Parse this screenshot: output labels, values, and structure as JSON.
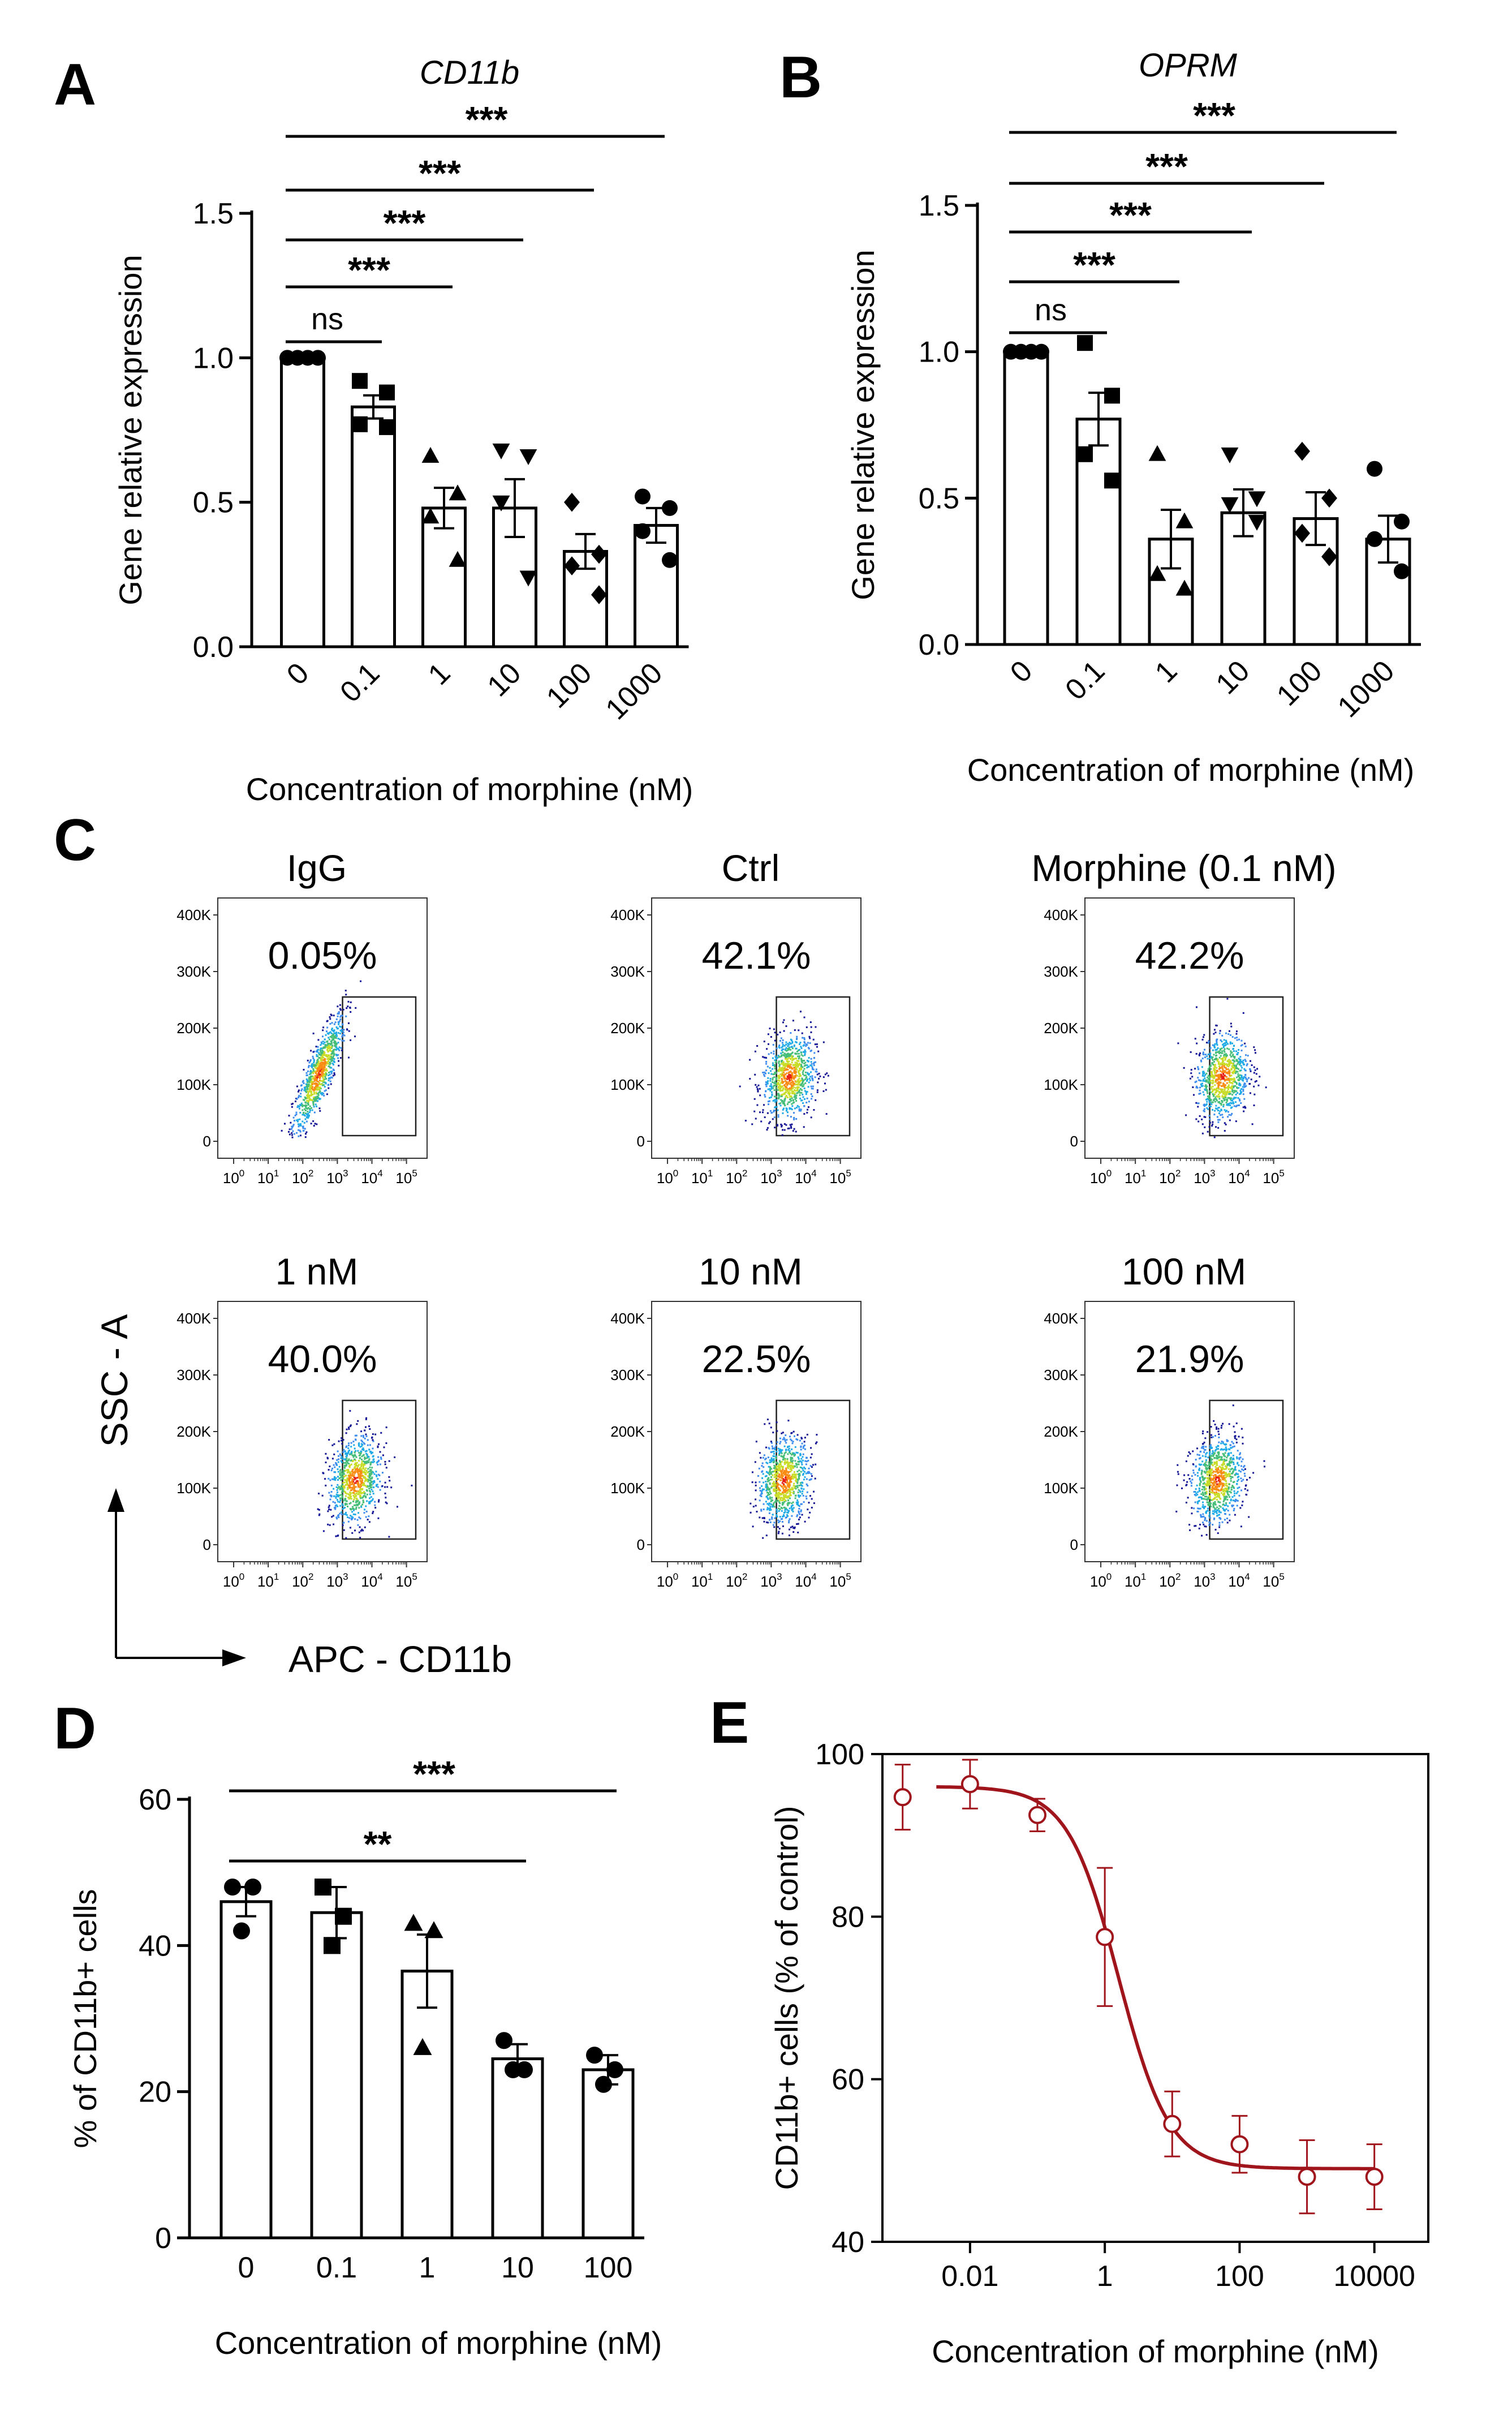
{
  "panel_labels": [
    "A",
    "B",
    "C",
    "D",
    "E"
  ],
  "chart_data": [
    {
      "panel": "A",
      "type": "bar",
      "title": "CD11b",
      "ylabel": "Gene relative expression",
      "xlabel": "Concentration of morphine (nM)",
      "categories": [
        "0",
        "0.1",
        "1",
        "10",
        "100",
        "1000"
      ],
      "values": [
        1.0,
        0.83,
        0.48,
        0.48,
        0.33,
        0.42
      ],
      "errors": [
        0.0,
        0.04,
        0.07,
        0.1,
        0.06,
        0.06
      ],
      "points": [
        [
          1.0,
          1.0,
          1.0,
          1.0
        ],
        [
          0.92,
          0.88,
          0.77,
          0.76
        ],
        [
          0.66,
          0.53,
          0.45,
          0.3
        ],
        [
          0.68,
          0.66,
          0.5,
          0.24
        ],
        [
          0.5,
          0.32,
          0.28,
          0.18
        ],
        [
          0.52,
          0.48,
          0.4,
          0.3
        ]
      ],
      "markers": [
        "circle",
        "square",
        "triangle",
        "triangle-down",
        "diamond",
        "circle"
      ],
      "ylim": [
        0,
        1.5
      ],
      "yticks": [
        "0.0",
        "0.5",
        "1.0",
        "1.5"
      ],
      "comparisons": [
        {
          "from": 0,
          "to": 1,
          "label": "ns"
        },
        {
          "from": 0,
          "to": 2,
          "label": "***"
        },
        {
          "from": 0,
          "to": 3,
          "label": "***"
        },
        {
          "from": 0,
          "to": 4,
          "label": "***"
        },
        {
          "from": 0,
          "to": 5,
          "label": "***"
        }
      ]
    },
    {
      "panel": "B",
      "type": "bar",
      "title": "OPRM",
      "ylabel": "Gene relative expression",
      "xlabel": "Concentration of morphine (nM)",
      "categories": [
        "0",
        "0.1",
        "1",
        "10",
        "100",
        "1000"
      ],
      "values": [
        1.0,
        0.77,
        0.36,
        0.45,
        0.43,
        0.36
      ],
      "errors": [
        0.0,
        0.09,
        0.1,
        0.08,
        0.09,
        0.08
      ],
      "points": [
        [
          1.0,
          1.0,
          1.0,
          1.0
        ],
        [
          1.03,
          0.85,
          0.65,
          0.56
        ],
        [
          0.65,
          0.42,
          0.24,
          0.19
        ],
        [
          0.65,
          0.5,
          0.48,
          0.42
        ],
        [
          0.66,
          0.5,
          0.38,
          0.3
        ],
        [
          0.6,
          0.42,
          0.36,
          0.25
        ]
      ],
      "markers": [
        "circle",
        "square",
        "triangle",
        "triangle-down",
        "diamond",
        "circle"
      ],
      "ylim": [
        0,
        1.5
      ],
      "yticks": [
        "0.0",
        "0.5",
        "1.0",
        "1.5"
      ],
      "comparisons": [
        {
          "from": 0,
          "to": 1,
          "label": "ns"
        },
        {
          "from": 0,
          "to": 2,
          "label": "***"
        },
        {
          "from": 0,
          "to": 3,
          "label": "***"
        },
        {
          "from": 0,
          "to": 4,
          "label": "***"
        },
        {
          "from": 0,
          "to": 5,
          "label": "***"
        }
      ]
    },
    {
      "panel": "C",
      "type": "scatter",
      "subtype": "flow-cytometry-density",
      "ylabel": "SSC - A",
      "xlabel": "APC - CD11b",
      "y_ticks": [
        "400K",
        "300K",
        "200K",
        "100K",
        "0"
      ],
      "x_tick_exponents": [
        "0",
        "1",
        "2",
        "3",
        "4",
        "5"
      ],
      "x_tick_base": "10",
      "plots": [
        {
          "title": "IgG",
          "gated_percent": "0.05%",
          "gate_x_start_log": 3.15
        },
        {
          "title": "Ctrl",
          "gated_percent": "42.1%",
          "gate_x_start_log": 3.15
        },
        {
          "title": "Morphine (0.1 nM)",
          "gated_percent": "42.2%",
          "gate_x_start_log": 3.15
        },
        {
          "title": "1 nM",
          "gated_percent": "40.0%",
          "gate_x_start_log": 3.15
        },
        {
          "title": "10 nM",
          "gated_percent": "22.5%",
          "gate_x_start_log": 3.15
        },
        {
          "title": "100 nM",
          "gated_percent": "21.9%",
          "gate_x_start_log": 3.15
        }
      ]
    },
    {
      "panel": "D",
      "type": "bar",
      "ylabel": "% of CD11b+ cells",
      "xlabel": "Concentration of morphine (nM)",
      "categories": [
        "0",
        "0.1",
        "1",
        "10",
        "100"
      ],
      "values": [
        46,
        44.5,
        36.5,
        24.5,
        23
      ],
      "errors": [
        2,
        3.5,
        5,
        2,
        2
      ],
      "points": [
        [
          48,
          48,
          42
        ],
        [
          48,
          44,
          40
        ],
        [
          43,
          42,
          26
        ],
        [
          27,
          23,
          23
        ],
        [
          25,
          23,
          21
        ]
      ],
      "markers": [
        "circle",
        "square",
        "triangle",
        "circle",
        "circle"
      ],
      "ylim": [
        0,
        60
      ],
      "yticks": [
        "0",
        "20",
        "40",
        "60"
      ],
      "comparisons": [
        {
          "from": 0,
          "to": 3,
          "label": "**"
        },
        {
          "from": 0,
          "to": 4,
          "label": "***"
        }
      ]
    },
    {
      "panel": "E",
      "type": "scatter",
      "subtype": "dose-response",
      "ylabel": "CD11b+ cells (% of control)",
      "xlabel": "Concentration of morphine (nM)",
      "x_scale": "log",
      "x": [
        0.001,
        0.01,
        0.1,
        1,
        10,
        100,
        1000,
        10000
      ],
      "y": [
        94.7,
        96.3,
        92.5,
        77.5,
        54.5,
        52,
        48,
        48
      ],
      "y_err": [
        4,
        3,
        2,
        8.5,
        4,
        3.5,
        4.5,
        4
      ],
      "xlim_log10": [
        -3.3,
        4.8
      ],
      "ylim": [
        40,
        100
      ],
      "xticks": [
        "0.01",
        "1",
        "100",
        "10000"
      ],
      "yticks": [
        "40",
        "60",
        "80",
        "100"
      ],
      "fit": {
        "top": 96,
        "bottom": 49,
        "ic50": 1.6,
        "hill": 1.15
      },
      "color": "#a0141c"
    }
  ]
}
